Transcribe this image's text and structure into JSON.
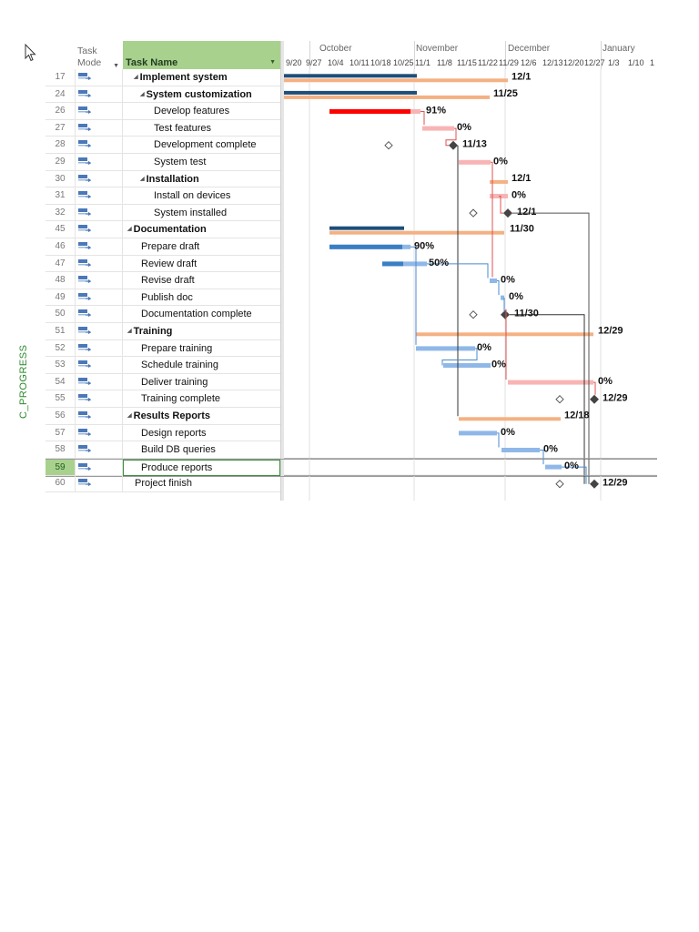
{
  "vertical_label": "C_PROGRESS",
  "header": {
    "task_mode_line1": "Task",
    "task_mode_line2": "Mode",
    "task_name": "Task Name",
    "months": [
      "October",
      "November",
      "December",
      "January"
    ],
    "weeks": [
      "9/20",
      "9/27",
      "10/4",
      "10/11",
      "10/18",
      "10/25",
      "11/1",
      "11/8",
      "11/15",
      "11/22",
      "11/29",
      "12/6",
      "12/13",
      "12/20",
      "12/27",
      "1/3",
      "1/10",
      "1"
    ]
  },
  "colors": {
    "summary_progress": "#1f4e79",
    "summary_bar": "#f4b183",
    "red_progress": "#ff0000",
    "red_bar": "#f8b4b4",
    "blue_progress": "#3a7fc4",
    "blue_bar": "#8fb8e8",
    "selected_header": "#a9d18e"
  },
  "tasks": [
    {
      "id": "17",
      "name": "Implement system",
      "indent": 1,
      "bold": true,
      "summary_toggle": true,
      "label": "12/1"
    },
    {
      "id": "24",
      "name": "System customization",
      "indent": 2,
      "bold": true,
      "summary_toggle": true,
      "label": "11/25"
    },
    {
      "id": "26",
      "name": "Develop features",
      "indent": 3,
      "bold": false,
      "summary_toggle": false,
      "label": "91%"
    },
    {
      "id": "27",
      "name": "Test features",
      "indent": 3,
      "bold": false,
      "summary_toggle": false,
      "label": "0%"
    },
    {
      "id": "28",
      "name": "Development complete",
      "indent": 3,
      "bold": false,
      "summary_toggle": false,
      "label": "11/13"
    },
    {
      "id": "29",
      "name": "System test",
      "indent": 3,
      "bold": false,
      "summary_toggle": false,
      "label": "0%"
    },
    {
      "id": "30",
      "name": "Installation",
      "indent": 2,
      "bold": true,
      "summary_toggle": true,
      "label": "12/1"
    },
    {
      "id": "31",
      "name": "Install on devices",
      "indent": 3,
      "bold": false,
      "summary_toggle": false,
      "label": "0%"
    },
    {
      "id": "32",
      "name": "System installed",
      "indent": 3,
      "bold": false,
      "summary_toggle": false,
      "label": "12/1"
    },
    {
      "id": "45",
      "name": "Documentation",
      "indent": 0,
      "bold": true,
      "summary_toggle": true,
      "label": "11/30"
    },
    {
      "id": "46",
      "name": "Prepare draft",
      "indent": 1,
      "bold": false,
      "summary_toggle": false,
      "label": "90%"
    },
    {
      "id": "47",
      "name": "Review draft",
      "indent": 1,
      "bold": false,
      "summary_toggle": false,
      "label": "50%"
    },
    {
      "id": "48",
      "name": "Revise draft",
      "indent": 1,
      "bold": false,
      "summary_toggle": false,
      "label": "0%"
    },
    {
      "id": "49",
      "name": "Publish doc",
      "indent": 1,
      "bold": false,
      "summary_toggle": false,
      "label": "0%"
    },
    {
      "id": "50",
      "name": "Documentation complete",
      "indent": 1,
      "bold": false,
      "summary_toggle": false,
      "label": "11/30"
    },
    {
      "id": "51",
      "name": "Training",
      "indent": 0,
      "bold": true,
      "summary_toggle": true,
      "label": "12/29"
    },
    {
      "id": "52",
      "name": "Prepare training",
      "indent": 1,
      "bold": false,
      "summary_toggle": false,
      "label": "0%"
    },
    {
      "id": "53",
      "name": "Schedule training",
      "indent": 1,
      "bold": false,
      "summary_toggle": false,
      "label": "0%"
    },
    {
      "id": "54",
      "name": "Deliver training",
      "indent": 1,
      "bold": false,
      "summary_toggle": false,
      "label": "0%"
    },
    {
      "id": "55",
      "name": "Training complete",
      "indent": 1,
      "bold": false,
      "summary_toggle": false,
      "label": "12/29"
    },
    {
      "id": "56",
      "name": "Results Reports",
      "indent": 0,
      "bold": true,
      "summary_toggle": true,
      "label": "12/18"
    },
    {
      "id": "57",
      "name": "Design reports",
      "indent": 1,
      "bold": false,
      "summary_toggle": false,
      "label": "0%"
    },
    {
      "id": "58",
      "name": "Build DB queries",
      "indent": 1,
      "bold": false,
      "summary_toggle": false,
      "label": "0%"
    },
    {
      "id": "59",
      "name": "Produce reports",
      "indent": 1,
      "bold": false,
      "summary_toggle": false,
      "label": "0%",
      "selected": true
    },
    {
      "id": "60",
      "name": "Project finish",
      "indent": 0,
      "bold": false,
      "summary_toggle": false,
      "label": "12/29"
    }
  ]
}
